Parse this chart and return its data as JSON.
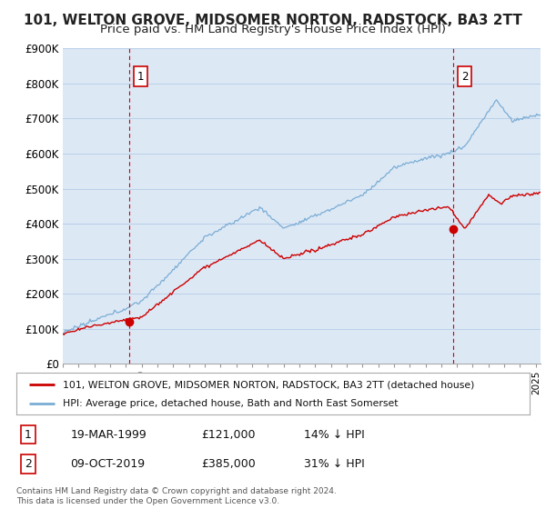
{
  "title": "101, WELTON GROVE, MIDSOMER NORTON, RADSTOCK, BA3 2TT",
  "subtitle": "Price paid vs. HM Land Registry's House Price Index (HPI)",
  "ylim": [
    0,
    900000
  ],
  "yticks": [
    0,
    100000,
    200000,
    300000,
    400000,
    500000,
    600000,
    700000,
    800000,
    900000
  ],
  "ytick_labels": [
    "£0",
    "£100K",
    "£200K",
    "£300K",
    "£400K",
    "£500K",
    "£600K",
    "£700K",
    "£800K",
    "£900K"
  ],
  "xlim_start": 1995.0,
  "xlim_end": 2025.3,
  "sale1_x": 1999.22,
  "sale1_y": 121000,
  "sale1_label": "1",
  "sale2_x": 2019.77,
  "sale2_y": 385000,
  "sale2_label": "2",
  "line_color_price": "#cc0000",
  "line_color_hpi": "#7aadd4",
  "vline_color": "#cc0000",
  "chart_bg_color": "#dde8f5",
  "fig_bg_color": "#ffffff",
  "grid_color": "#b8cfe8",
  "legend_line1": "101, WELTON GROVE, MIDSOMER NORTON, RADSTOCK, BA3 2TT (detached house)",
  "legend_line2": "HPI: Average price, detached house, Bath and North East Somerset",
  "table_row1": [
    "1",
    "19-MAR-1999",
    "£121,000",
    "14% ↓ HPI"
  ],
  "table_row2": [
    "2",
    "09-OCT-2019",
    "£385,000",
    "31% ↓ HPI"
  ],
  "footnote": "Contains HM Land Registry data © Crown copyright and database right 2024.\nThis data is licensed under the Open Government Licence v3.0.",
  "title_fontsize": 11,
  "subtitle_fontsize": 9.5
}
